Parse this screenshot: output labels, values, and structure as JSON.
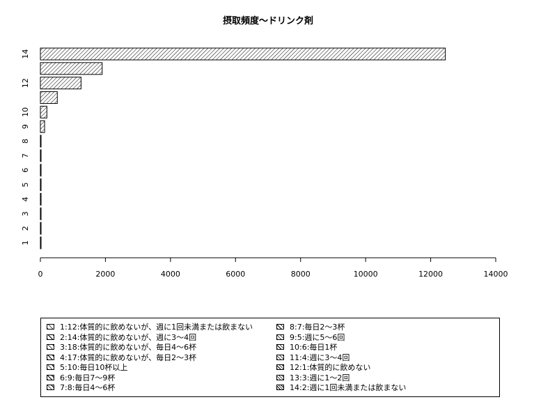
{
  "chart_data": {
    "type": "bar",
    "orientation": "horizontal",
    "title": "摂取頻度～ドリンク剤",
    "xlabel": "",
    "ylabel": "",
    "xlim": [
      0,
      14000
    ],
    "x_ticks": [
      0,
      2000,
      4000,
      6000,
      8000,
      10000,
      12000,
      14000
    ],
    "categories": [
      "1",
      "2",
      "3",
      "4",
      "5",
      "6",
      "7",
      "8",
      "9",
      "10",
      "11",
      "12",
      "13",
      "14"
    ],
    "y_tick_labels_shown": [
      "1",
      "2",
      "3",
      "4",
      "5",
      "6",
      "7",
      "8",
      "9",
      "10",
      "12",
      "14"
    ],
    "values": [
      12,
      14,
      18,
      17,
      10,
      9,
      8,
      7,
      130,
      200,
      520,
      1250,
      1900,
      12450
    ],
    "bar_color": "#000000",
    "background": "#ffffff",
    "grid": false,
    "legend_position": "bottom",
    "legend": [
      "1:12:体質的に飲めないが、週に1回未満または飲まない",
      "2:14:体質的に飲めないが、週に3～4回",
      "3:18:体質的に飲めないが、毎日4～6杯",
      "4:17:体質的に飲めないが、毎日2～3杯",
      "5:10:毎日10杯以上",
      "6:9:毎日7～9杯",
      "7:8:毎日4～6杯",
      "8:7:毎日2～3杯",
      "9:5:週に5～6回",
      "10:6:毎日1杯",
      "11:4:週に3～4回",
      "12:1:体質的に飲めない",
      "13:3:週に1～2回",
      "14:2:週に1回未満または飲まない"
    ]
  }
}
